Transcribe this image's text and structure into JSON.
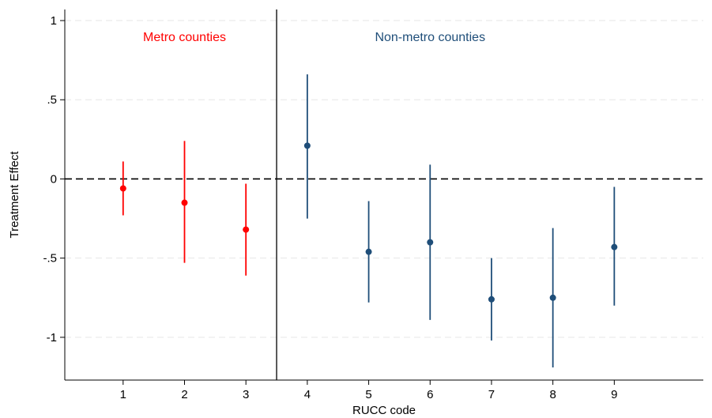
{
  "chart_data": {
    "type": "scatter",
    "xlabel": "RUCC code",
    "ylabel": "Treatment Effect",
    "xlim": [
      0.05,
      10.45
    ],
    "ylim": [
      -1.27,
      1.07
    ],
    "xticks": [
      1,
      2,
      3,
      4,
      5,
      6,
      7,
      8,
      9
    ],
    "yticks": [
      {
        "value": 1,
        "label": "1"
      },
      {
        "value": 0.5,
        "label": ".5"
      },
      {
        "value": 0,
        "label": "0"
      },
      {
        "value": -0.5,
        "label": "-.5"
      },
      {
        "value": -1,
        "label": "-1"
      }
    ],
    "grid": true,
    "reference_line_y": 0,
    "divider_x": 3.5,
    "groups": [
      {
        "label": "Metro counties",
        "color": "#ff0000",
        "label_x": 2
      },
      {
        "label": "Non-metro counties",
        "color": "#1f4e79",
        "label_x": 6
      }
    ],
    "series": [
      {
        "group": 0,
        "color": "#ff0000",
        "points": [
          {
            "x": 1,
            "y": -0.06,
            "lo": -0.23,
            "hi": 0.11
          },
          {
            "x": 2,
            "y": -0.15,
            "lo": -0.53,
            "hi": 0.24
          },
          {
            "x": 3,
            "y": -0.32,
            "lo": -0.61,
            "hi": -0.03
          }
        ]
      },
      {
        "group": 1,
        "color": "#1f4e79",
        "points": [
          {
            "x": 4,
            "y": 0.21,
            "lo": -0.25,
            "hi": 0.66
          },
          {
            "x": 5,
            "y": -0.46,
            "lo": -0.78,
            "hi": -0.14
          },
          {
            "x": 6,
            "y": -0.4,
            "lo": -0.89,
            "hi": 0.09
          },
          {
            "x": 7,
            "y": -0.76,
            "lo": -1.02,
            "hi": -0.5
          },
          {
            "x": 8,
            "y": -0.75,
            "lo": -1.19,
            "hi": -0.31
          },
          {
            "x": 9,
            "y": -0.43,
            "lo": -0.8,
            "hi": -0.05
          }
        ]
      }
    ]
  }
}
